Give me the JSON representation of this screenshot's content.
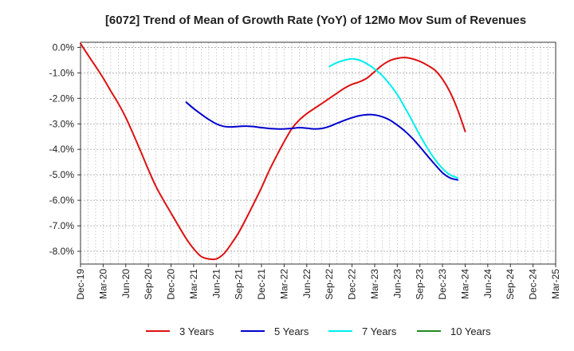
{
  "chart_data": {
    "type": "line",
    "title": "[6072]  Trend of Mean of Growth Rate (YoY) of 12Mo Mov Sum of Revenues",
    "xlabel": "",
    "ylabel": "",
    "ylim": [
      -8.5,
      0.2
    ],
    "y_ticks": [
      0,
      -1,
      -2,
      -3,
      -4,
      -5,
      -6,
      -7,
      -8
    ],
    "y_tick_labels": [
      "0.0%",
      "-1.0%",
      "-2.0%",
      "-3.0%",
      "-4.0%",
      "-5.0%",
      "-6.0%",
      "-7.0%",
      "-8.0%"
    ],
    "x_tick_labels": [
      "Dec-19",
      "Mar-20",
      "Jun-20",
      "Sep-20",
      "Dec-20",
      "Mar-21",
      "Jun-21",
      "Sep-21",
      "Dec-21",
      "Mar-22",
      "Jun-22",
      "Sep-22",
      "Dec-22",
      "Mar-23",
      "Jun-23",
      "Sep-23",
      "Dec-23",
      "Mar-24",
      "Jun-24",
      "Sep-24",
      "Dec-24",
      "Mar-25"
    ],
    "grid": true,
    "legend_position": "bottom",
    "series": [
      {
        "name": "3 Years",
        "color": "#dd1111",
        "points": [
          [
            0,
            0.15
          ],
          [
            0.33,
            -0.3
          ],
          [
            0.67,
            -0.75
          ],
          [
            1,
            -1.2
          ],
          [
            1.33,
            -1.7
          ],
          [
            1.67,
            -2.2
          ],
          [
            2,
            -2.75
          ],
          [
            2.33,
            -3.4
          ],
          [
            2.67,
            -4.1
          ],
          [
            3,
            -4.8
          ],
          [
            3.33,
            -5.45
          ],
          [
            3.67,
            -6.0
          ],
          [
            4,
            -6.5
          ],
          [
            4.33,
            -7.0
          ],
          [
            4.67,
            -7.5
          ],
          [
            5,
            -7.9
          ],
          [
            5.33,
            -8.2
          ],
          [
            5.67,
            -8.3
          ],
          [
            6,
            -8.3
          ],
          [
            6.33,
            -8.1
          ],
          [
            6.67,
            -7.7
          ],
          [
            7,
            -7.25
          ],
          [
            7.33,
            -6.7
          ],
          [
            7.67,
            -6.1
          ],
          [
            8,
            -5.5
          ],
          [
            8.33,
            -4.85
          ],
          [
            8.67,
            -4.25
          ],
          [
            9,
            -3.7
          ],
          [
            9.33,
            -3.2
          ],
          [
            9.67,
            -2.85
          ],
          [
            10,
            -2.6
          ],
          [
            10.33,
            -2.4
          ],
          [
            10.67,
            -2.2
          ],
          [
            11,
            -2.0
          ],
          [
            11.33,
            -1.8
          ],
          [
            11.67,
            -1.6
          ],
          [
            12,
            -1.45
          ],
          [
            12.33,
            -1.35
          ],
          [
            12.67,
            -1.2
          ],
          [
            13,
            -0.95
          ],
          [
            13.33,
            -0.7
          ],
          [
            13.67,
            -0.52
          ],
          [
            14,
            -0.43
          ],
          [
            14.33,
            -0.4
          ],
          [
            14.67,
            -0.45
          ],
          [
            15,
            -0.55
          ],
          [
            15.33,
            -0.7
          ],
          [
            15.67,
            -0.9
          ],
          [
            16,
            -1.25
          ],
          [
            16.33,
            -1.75
          ],
          [
            16.67,
            -2.45
          ],
          [
            17,
            -3.3
          ]
        ]
      },
      {
        "name": "5 Years",
        "color": "#0000cc",
        "points": [
          [
            4.67,
            -2.15
          ],
          [
            5,
            -2.4
          ],
          [
            5.33,
            -2.62
          ],
          [
            5.67,
            -2.83
          ],
          [
            6,
            -3.0
          ],
          [
            6.33,
            -3.1
          ],
          [
            6.67,
            -3.12
          ],
          [
            7,
            -3.1
          ],
          [
            7.33,
            -3.09
          ],
          [
            7.67,
            -3.11
          ],
          [
            8,
            -3.15
          ],
          [
            8.33,
            -3.18
          ],
          [
            8.67,
            -3.2
          ],
          [
            9,
            -3.2
          ],
          [
            9.33,
            -3.18
          ],
          [
            9.67,
            -3.15
          ],
          [
            10,
            -3.17
          ],
          [
            10.33,
            -3.2
          ],
          [
            10.67,
            -3.18
          ],
          [
            11,
            -3.1
          ],
          [
            11.33,
            -2.98
          ],
          [
            11.67,
            -2.86
          ],
          [
            12,
            -2.76
          ],
          [
            12.33,
            -2.68
          ],
          [
            12.67,
            -2.64
          ],
          [
            13,
            -2.65
          ],
          [
            13.33,
            -2.72
          ],
          [
            13.67,
            -2.85
          ],
          [
            14,
            -3.05
          ],
          [
            14.33,
            -3.28
          ],
          [
            14.67,
            -3.57
          ],
          [
            15,
            -3.9
          ],
          [
            15.33,
            -4.25
          ],
          [
            15.67,
            -4.6
          ],
          [
            16,
            -4.92
          ],
          [
            16.33,
            -5.12
          ],
          [
            16.67,
            -5.2
          ]
        ]
      },
      {
        "name": "7 Years",
        "color": "#00eeee",
        "points": [
          [
            11,
            -0.75
          ],
          [
            11.33,
            -0.6
          ],
          [
            11.67,
            -0.5
          ],
          [
            12,
            -0.45
          ],
          [
            12.33,
            -0.5
          ],
          [
            12.67,
            -0.65
          ],
          [
            13,
            -0.85
          ],
          [
            13.33,
            -1.1
          ],
          [
            13.67,
            -1.45
          ],
          [
            14,
            -1.85
          ],
          [
            14.33,
            -2.35
          ],
          [
            14.67,
            -2.9
          ],
          [
            15,
            -3.45
          ],
          [
            15.33,
            -3.95
          ],
          [
            15.67,
            -4.4
          ],
          [
            16,
            -4.75
          ],
          [
            16.33,
            -5.0
          ],
          [
            16.67,
            -5.12
          ]
        ]
      },
      {
        "name": "10 Years",
        "color": "#228b22",
        "points": []
      }
    ]
  }
}
